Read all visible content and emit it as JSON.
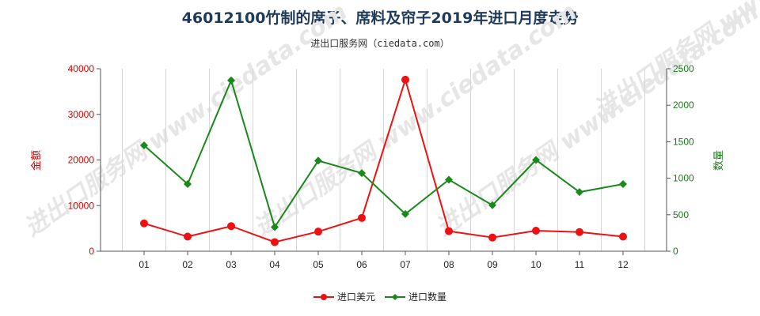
{
  "title": "46012100竹制的席子、席料及帘子2019年进口月度走势",
  "subtitle": "进出口服务网（ciedata.com）",
  "chart_data": {
    "type": "line",
    "categories": [
      "01",
      "02",
      "03",
      "04",
      "05",
      "06",
      "07",
      "08",
      "09",
      "10",
      "11",
      "12"
    ],
    "series": [
      {
        "name": "进口美元",
        "axis": "left",
        "color": "#ee1111",
        "values": [
          6100,
          3200,
          5500,
          2000,
          4300,
          7300,
          37600,
          4400,
          3000,
          4500,
          4200,
          3200
        ]
      },
      {
        "name": "进口数量",
        "axis": "right",
        "color": "#1a881a",
        "values": [
          1450,
          920,
          2340,
          330,
          1240,
          1070,
          510,
          980,
          630,
          1250,
          810,
          920
        ]
      }
    ],
    "ylabel_left": "金额",
    "ylabel_right": "数量",
    "ylim_left": [
      0,
      40000
    ],
    "ylim_right": [
      0,
      2500
    ],
    "yticks_left": [
      "0",
      "10000",
      "20000",
      "30000",
      "40000"
    ],
    "yticks_right": [
      "0",
      "500",
      "1000",
      "1500",
      "2000",
      "2500"
    ],
    "grid": "vertical",
    "legend": "bottom-center",
    "watermark": "进出口服务网 www.ciedata.com"
  }
}
